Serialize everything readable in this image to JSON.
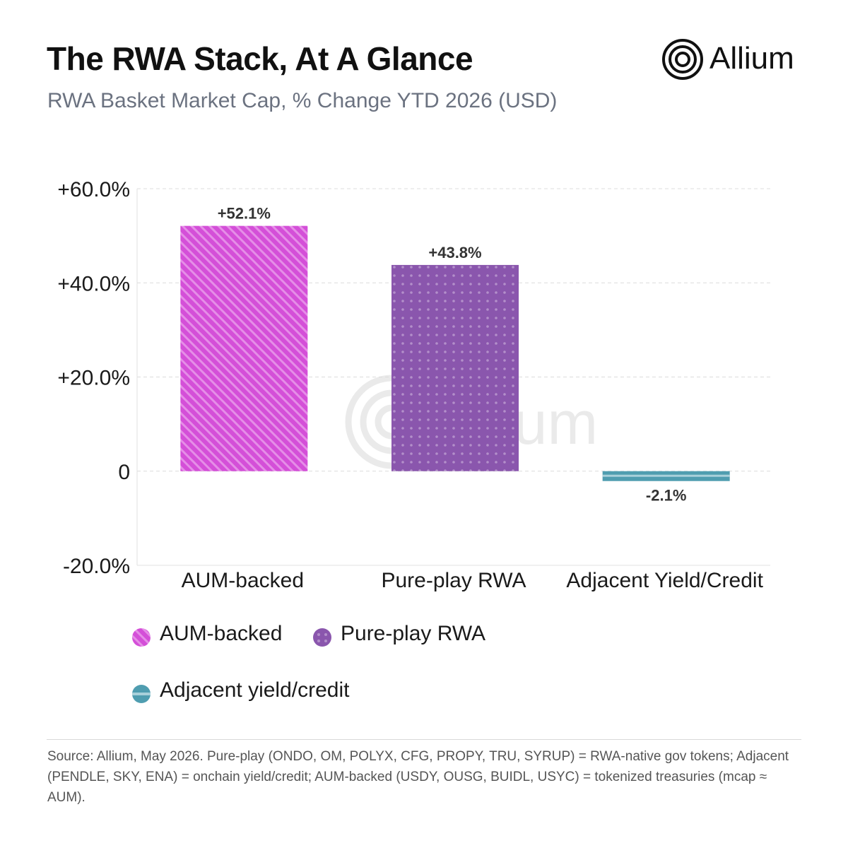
{
  "header": {
    "title": "The RWA Stack, At A Glance",
    "subtitle": "RWA Basket Market Cap, % Change YTD 2026 (USD)"
  },
  "brand": {
    "name": "Allium",
    "icon": "concentric-circles-logo-icon"
  },
  "chart_data": {
    "type": "bar",
    "title": "The RWA Stack, At A Glance",
    "subtitle": "RWA Basket Market Cap, % Change YTD 2026 (USD)",
    "categories": [
      "AUM-backed",
      "Pure-play RWA",
      "Adjacent Yield/Credit"
    ],
    "values": [
      52.1,
      43.8,
      -2.1
    ],
    "data_labels": [
      "+52.1%",
      "+43.8%",
      "-2.1%"
    ],
    "colors": [
      "#d44fd8",
      "#8a56ad",
      "#4f9db0"
    ],
    "patterns": [
      "diagonal-stripes",
      "dots",
      "horizontal-band"
    ],
    "ylim": [
      -20,
      60
    ],
    "yticks": [
      -20,
      0,
      20,
      40,
      60
    ],
    "ytick_labels": [
      "-20.0%",
      "0",
      "+20.0%",
      "+40.0%",
      "+60.0%"
    ],
    "grid": true,
    "legend_placement": "bottom-left",
    "legend": [
      {
        "label": "AUM-backed",
        "color": "#d44fd8",
        "pattern": "diagonal-stripes"
      },
      {
        "label": "Pure-play RWA",
        "color": "#8a56ad",
        "pattern": "dots"
      },
      {
        "label": "Adjacent yield/credit",
        "color": "#4f9db0",
        "pattern": "horizontal-band"
      }
    ],
    "watermark": "Allium"
  },
  "footer": {
    "source": "Source: Allium, May 2026. Pure-play (ONDO, OM, POLYX, CFG, PROPY, TRU, SYRUP) = RWA-native gov tokens; Adjacent (PENDLE, SKY, ENA) = onchain yield/credit; AUM-backed (USDY, OUSG, BUIDL, USYC) = tokenized treasuries (mcap ≈ AUM)."
  }
}
